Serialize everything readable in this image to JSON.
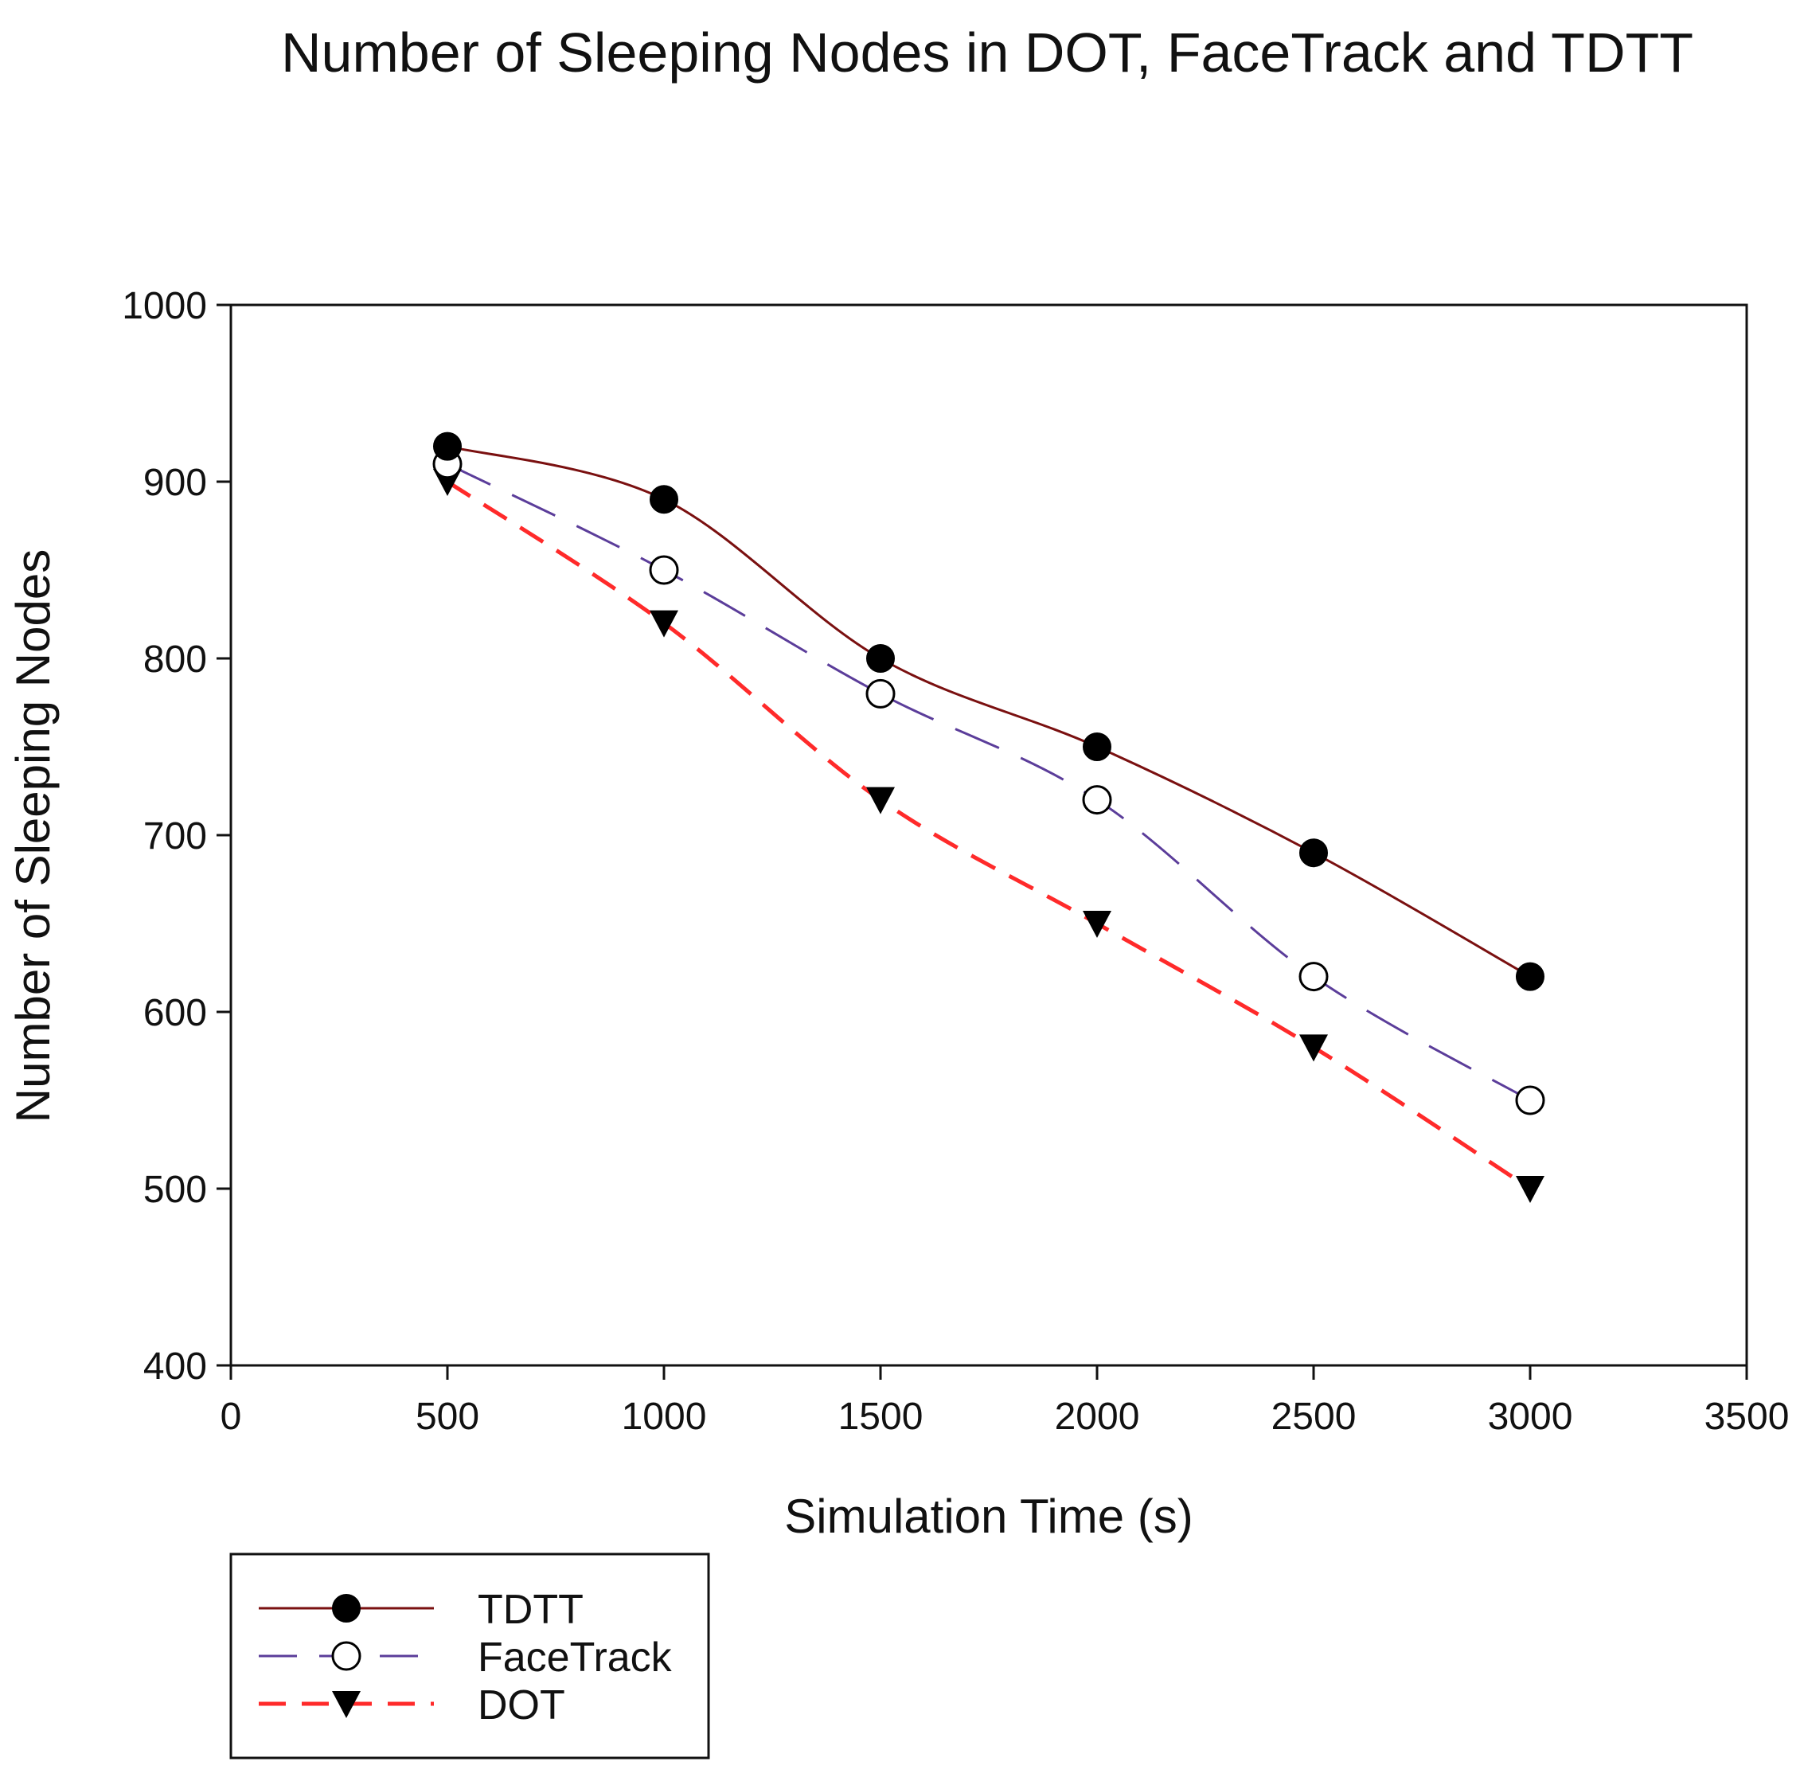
{
  "chart_data": {
    "type": "line",
    "title": "Number of Sleeping Nodes in DOT, FaceTrack and TDTT",
    "xlabel": "Simulation Time (s)",
    "ylabel": "Number of Sleeping Nodes",
    "xlim": [
      0,
      3500
    ],
    "ylim": [
      400,
      1000
    ],
    "x_ticks": [
      0,
      500,
      1000,
      1500,
      2000,
      2500,
      3000,
      3500
    ],
    "y_ticks": [
      400,
      500,
      600,
      700,
      800,
      900,
      1000
    ],
    "x": [
      500,
      1000,
      1500,
      2000,
      2500,
      3000
    ],
    "grid": false,
    "legend_position": "bottom-left",
    "series": [
      {
        "name": "TDTT",
        "values": [
          920,
          890,
          800,
          750,
          690,
          620
        ],
        "color": "#7a1010",
        "line": "solid",
        "marker": "filled-circle"
      },
      {
        "name": "FaceTrack",
        "values": [
          910,
          850,
          780,
          720,
          620,
          550
        ],
        "color": "#5b3d9a",
        "line": "long-dash",
        "marker": "open-circle"
      },
      {
        "name": "DOT",
        "values": [
          900,
          820,
          720,
          650,
          580,
          500
        ],
        "color": "#ff2a2a",
        "line": "dash",
        "marker": "filled-triangle-down"
      }
    ]
  }
}
